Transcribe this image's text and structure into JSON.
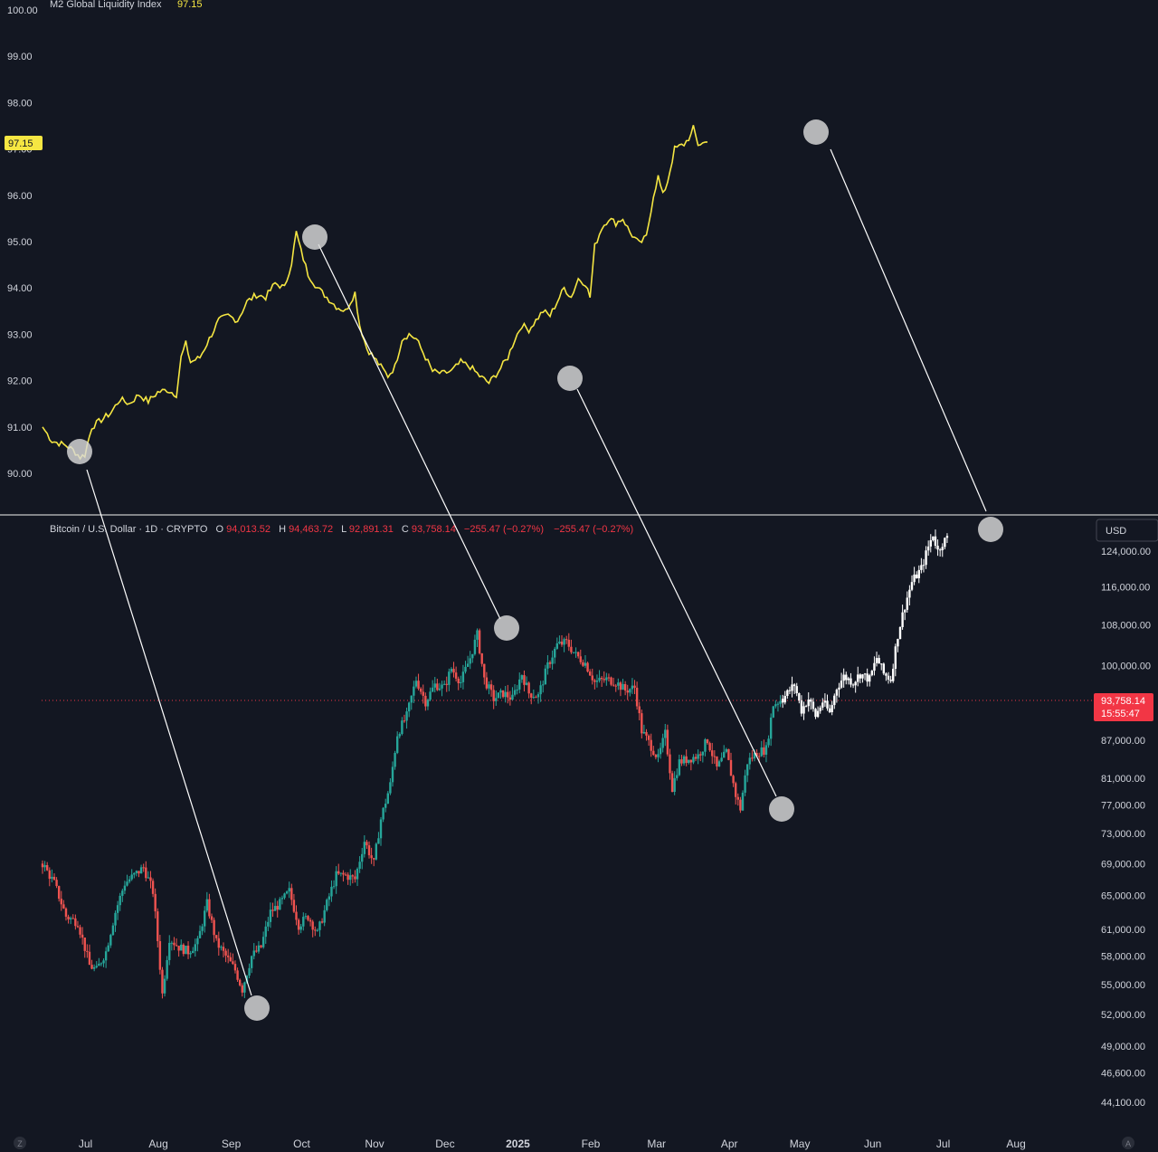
{
  "colors": {
    "background": "#131722",
    "m2_line": "#f5e642",
    "up_candle": "#26a69a",
    "down_candle": "#ef5350",
    "projection": "#ffffff",
    "axis_text": "#d1d4dc",
    "price_tag": "#f23645",
    "separator": "#c8c8c8",
    "marker": "#d9d9d9"
  },
  "top_pane": {
    "legend_name": "M2 Global Liquidity Index",
    "legend_value": "97.15",
    "last_value_tag": "97.15"
  },
  "bottom_pane": {
    "legend": {
      "symbol": "Bitcoin / U.S. Dollar · 1D · CRYPTO",
      "o_label": "O",
      "o_value": "94,013.52",
      "h_label": "H",
      "h_value": "94,463.72",
      "l_label": "L",
      "l_value": "92,891.31",
      "c_label": "C",
      "c_value": "93,758.14",
      "change": "−255.47 (−0.27%)",
      "change2": "−255.47 (−0.27%)"
    },
    "currency_button": "USD",
    "price_tag": "93,758.14",
    "countdown": "15:55:47"
  },
  "footer": {
    "left_icon": "Z",
    "right_icon": "A"
  },
  "chart_data": [
    {
      "type": "line",
      "series": [
        {
          "name": "M2 Global Liquidity Index",
          "values_description": "daily index"
        }
      ],
      "x_start": "2024-06-15",
      "x_end": "2025-04-26",
      "ylim": [
        89.2,
        100.0
      ],
      "yticks": [
        "100.00",
        "99.00",
        "98.00",
        "97.00",
        "96.00",
        "95.00",
        "94.00",
        "93.00",
        "92.00",
        "91.00",
        "90.00"
      ],
      "anchors": [
        [
          "2024-06-15",
          91.0
        ],
        [
          "2024-06-19",
          90.7
        ],
        [
          "2024-06-25",
          90.6
        ],
        [
          "2024-06-28",
          90.5
        ],
        [
          "2024-07-01",
          90.35
        ],
        [
          "2024-07-03",
          90.4
        ],
        [
          "2024-07-06",
          91.0
        ],
        [
          "2024-07-10",
          91.15
        ],
        [
          "2024-07-14",
          91.3
        ],
        [
          "2024-07-18",
          91.6
        ],
        [
          "2024-07-22",
          91.5
        ],
        [
          "2024-07-26",
          91.7
        ],
        [
          "2024-07-30",
          91.55
        ],
        [
          "2024-08-03",
          91.75
        ],
        [
          "2024-08-07",
          91.8
        ],
        [
          "2024-08-11",
          91.7
        ],
        [
          "2024-08-13",
          92.5
        ],
        [
          "2024-08-15",
          92.8
        ],
        [
          "2024-08-17",
          92.4
        ],
        [
          "2024-08-21",
          92.5
        ],
        [
          "2024-08-25",
          92.9
        ],
        [
          "2024-08-29",
          93.3
        ],
        [
          "2024-09-02",
          93.4
        ],
        [
          "2024-09-06",
          93.3
        ],
        [
          "2024-09-10",
          93.7
        ],
        [
          "2024-09-14",
          93.85
        ],
        [
          "2024-09-18",
          93.8
        ],
        [
          "2024-09-22",
          94.1
        ],
        [
          "2024-09-26",
          94.0
        ],
        [
          "2024-09-29",
          94.55
        ],
        [
          "2024-10-01",
          95.2
        ],
        [
          "2024-10-03",
          94.8
        ],
        [
          "2024-10-06",
          94.3
        ],
        [
          "2024-10-10",
          94.0
        ],
        [
          "2024-10-14",
          93.8
        ],
        [
          "2024-10-18",
          93.6
        ],
        [
          "2024-10-22",
          93.5
        ],
        [
          "2024-10-26",
          93.9
        ],
        [
          "2024-10-28",
          93.2
        ],
        [
          "2024-10-31",
          92.7
        ],
        [
          "2024-11-03",
          92.5
        ],
        [
          "2024-11-06",
          92.3
        ],
        [
          "2024-11-09",
          92.1
        ],
        [
          "2024-11-12",
          92.3
        ],
        [
          "2024-11-15",
          92.9
        ],
        [
          "2024-11-18",
          93.0
        ],
        [
          "2024-11-21",
          92.9
        ],
        [
          "2024-11-25",
          92.5
        ],
        [
          "2024-11-28",
          92.2
        ],
        [
          "2024-12-02",
          92.15
        ],
        [
          "2024-12-06",
          92.2
        ],
        [
          "2024-12-10",
          92.4
        ],
        [
          "2024-12-14",
          92.3
        ],
        [
          "2024-12-18",
          92.1
        ],
        [
          "2024-12-22",
          91.95
        ],
        [
          "2024-12-26",
          92.2
        ],
        [
          "2024-12-30",
          92.5
        ],
        [
          "2025-01-02",
          92.9
        ],
        [
          "2025-01-05",
          93.2
        ],
        [
          "2025-01-08",
          93.1
        ],
        [
          "2025-01-11",
          93.3
        ],
        [
          "2025-01-14",
          93.5
        ],
        [
          "2025-01-17",
          93.4
        ],
        [
          "2025-01-20",
          93.7
        ],
        [
          "2025-01-23",
          94.0
        ],
        [
          "2025-01-26",
          93.8
        ],
        [
          "2025-01-29",
          94.2
        ],
        [
          "2025-02-01",
          94.1
        ],
        [
          "2025-02-03",
          93.8
        ],
        [
          "2025-02-05",
          94.9
        ],
        [
          "2025-02-08",
          95.3
        ],
        [
          "2025-02-11",
          95.5
        ],
        [
          "2025-02-14",
          95.4
        ],
        [
          "2025-02-17",
          95.5
        ],
        [
          "2025-02-20",
          95.2
        ],
        [
          "2025-02-24",
          94.95
        ],
        [
          "2025-02-27",
          95.1
        ],
        [
          "2025-03-02",
          96.0
        ],
        [
          "2025-03-04",
          96.4
        ],
        [
          "2025-03-06",
          96.0
        ],
        [
          "2025-03-08",
          96.3
        ],
        [
          "2025-03-11",
          97.0
        ],
        [
          "2025-03-15",
          97.1
        ],
        [
          "2025-03-18",
          97.3
        ],
        [
          "2025-03-19",
          97.45
        ],
        [
          "2025-03-21",
          97.1
        ],
        [
          "2025-03-25",
          97.15
        ]
      ]
    },
    {
      "type": "candlestick",
      "series": [
        {
          "name": "Bitcoin / U.S. Dollar"
        }
      ],
      "x_start": "2024-06-15",
      "x_end": "2025-08-31",
      "scale": "log",
      "yticks": [
        "124,000.00",
        "116,000.00",
        "108,000.00",
        "100,000.00",
        "87,000.00",
        "81,000.00",
        "77,000.00",
        "73,000.00",
        "69,000.00",
        "65,000.00",
        "61,000.00",
        "58,000.00",
        "55,000.00",
        "52,000.00",
        "49,000.00",
        "46,600.00",
        "44,100.00"
      ],
      "xticks": [
        "Jul",
        "Aug",
        "Sep",
        "Oct",
        "Nov",
        "Dec",
        "2025",
        "Feb",
        "Mar",
        "Apr",
        "May",
        "Jun",
        "Jul",
        "Aug"
      ],
      "last_price": 93758.14,
      "close_anchors": [
        [
          "2024-06-15",
          69000
        ],
        [
          "2024-06-20",
          66500
        ],
        [
          "2024-06-25",
          62500
        ],
        [
          "2024-06-30",
          61800
        ],
        [
          "2024-07-05",
          57000
        ],
        [
          "2024-07-08",
          56500
        ],
        [
          "2024-07-12",
          58500
        ],
        [
          "2024-07-16",
          63000
        ],
        [
          "2024-07-20",
          66500
        ],
        [
          "2024-07-24",
          67500
        ],
        [
          "2024-07-28",
          68500
        ],
        [
          "2024-08-01",
          65500
        ],
        [
          "2024-08-05",
          54000
        ],
        [
          "2024-08-08",
          60000
        ],
        [
          "2024-08-12",
          59000
        ],
        [
          "2024-08-16",
          58500
        ],
        [
          "2024-08-20",
          59500
        ],
        [
          "2024-08-24",
          64000
        ],
        [
          "2024-08-28",
          59500
        ],
        [
          "2024-09-01",
          58000
        ],
        [
          "2024-09-05",
          56500
        ],
        [
          "2024-09-08",
          54500
        ],
        [
          "2024-09-12",
          58000
        ],
        [
          "2024-09-16",
          59000
        ],
        [
          "2024-09-20",
          63000
        ],
        [
          "2024-09-24",
          64000
        ],
        [
          "2024-09-28",
          65500
        ],
        [
          "2024-10-02",
          61500
        ],
        [
          "2024-10-06",
          62500
        ],
        [
          "2024-10-10",
          60500
        ],
        [
          "2024-10-14",
          64000
        ],
        [
          "2024-10-18",
          67500
        ],
        [
          "2024-10-22",
          67500
        ],
        [
          "2024-10-26",
          67000
        ],
        [
          "2024-10-30",
          72000
        ],
        [
          "2024-11-03",
          69000
        ],
        [
          "2024-11-06",
          75000
        ],
        [
          "2024-11-10",
          80000
        ],
        [
          "2024-11-13",
          88000
        ],
        [
          "2024-11-17",
          91000
        ],
        [
          "2024-11-21",
          97500
        ],
        [
          "2024-11-25",
          93500
        ],
        [
          "2024-11-29",
          96500
        ],
        [
          "2024-12-03",
          96000
        ],
        [
          "2024-12-06",
          99500
        ],
        [
          "2024-12-10",
          97000
        ],
        [
          "2024-12-14",
          101500
        ],
        [
          "2024-12-17",
          106000
        ],
        [
          "2024-12-20",
          97500
        ],
        [
          "2024-12-24",
          94000
        ],
        [
          "2024-12-28",
          95000
        ],
        [
          "2025-01-01",
          94000
        ],
        [
          "2025-01-05",
          98500
        ],
        [
          "2025-01-08",
          95000
        ],
        [
          "2025-01-12",
          94500
        ],
        [
          "2025-01-16",
          100000
        ],
        [
          "2025-01-20",
          104000
        ],
        [
          "2025-01-24",
          104500
        ],
        [
          "2025-01-28",
          102000
        ],
        [
          "2025-02-01",
          100500
        ],
        [
          "2025-02-05",
          97000
        ],
        [
          "2025-02-10",
          97500
        ],
        [
          "2025-02-14",
          97000
        ],
        [
          "2025-02-18",
          95500
        ],
        [
          "2025-02-22",
          96000
        ],
        [
          "2025-02-25",
          88500
        ],
        [
          "2025-03-01",
          86000
        ],
        [
          "2025-03-04",
          84000
        ],
        [
          "2025-03-07",
          88000
        ],
        [
          "2025-03-10",
          79500
        ],
        [
          "2025-03-13",
          83500
        ],
        [
          "2025-03-17",
          84000
        ],
        [
          "2025-03-21",
          84500
        ],
        [
          "2025-03-25",
          87000
        ],
        [
          "2025-03-29",
          82500
        ],
        [
          "2025-04-02",
          85000
        ],
        [
          "2025-04-06",
          78500
        ],
        [
          "2025-04-08",
          76500
        ],
        [
          "2025-04-11",
          83500
        ],
        [
          "2025-04-15",
          85000
        ],
        [
          "2025-04-19",
          85500
        ],
        [
          "2025-04-22",
          93000
        ],
        [
          "2025-04-26",
          94000
        ]
      ],
      "projection_anchors": [
        [
          "2025-04-26",
          94000
        ],
        [
          "2025-05-01",
          96500
        ],
        [
          "2025-05-04",
          92000
        ],
        [
          "2025-05-07",
          94000
        ],
        [
          "2025-05-10",
          91000
        ],
        [
          "2025-05-13",
          93500
        ],
        [
          "2025-05-16",
          91500
        ],
        [
          "2025-05-19",
          96000
        ],
        [
          "2025-05-22",
          98000
        ],
        [
          "2025-05-26",
          97000
        ],
        [
          "2025-05-29",
          98500
        ],
        [
          "2025-06-02",
          97500
        ],
        [
          "2025-06-05",
          101500
        ],
        [
          "2025-06-08",
          98500
        ],
        [
          "2025-06-11",
          97500
        ],
        [
          "2025-06-14",
          106000
        ],
        [
          "2025-06-17",
          112000
        ],
        [
          "2025-06-20",
          117000
        ],
        [
          "2025-06-24",
          120000
        ],
        [
          "2025-06-27",
          125000
        ],
        [
          "2025-06-29",
          128000
        ],
        [
          "2025-07-01",
          124000
        ],
        [
          "2025-07-03",
          126000
        ],
        [
          "2025-07-05",
          127000
        ]
      ],
      "annotations": [
        {
          "from": "M2 low Jul 2024",
          "to": "BTC low Sep 2024"
        },
        {
          "from": "M2 peak Oct 2024",
          "to": "BTC peak Dec 2024"
        },
        {
          "from": "M2 low Jan 2025",
          "to": "BTC low Apr 2025"
        },
        {
          "from": "M2 peak Apr 2025",
          "to": "BTC projected peak Jul 2025"
        }
      ]
    }
  ]
}
